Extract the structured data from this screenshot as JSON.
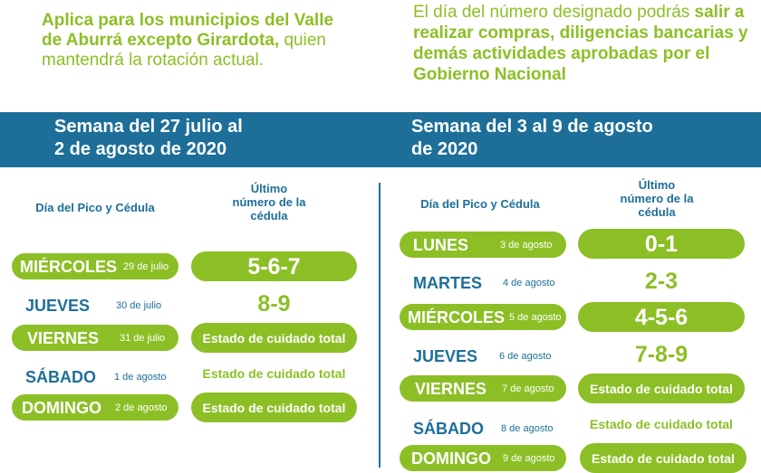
{
  "intro": {
    "left_bold": "Aplica para los municipios del Valle de Aburrá excepto Girardota,",
    "left_rest": " quien mantendrá la rotación actual.",
    "right_plain": "El día del número designado podrás ",
    "right_bold": "salir a realizar compras, diligencias bancarias y demás actividades aprobadas por el Gobierno Nacional"
  },
  "weeks": [
    {
      "title_line1": "Semana del 27 julio al",
      "title_line2": "2 de agosto de 2020",
      "day_header": "Día del Pico y Cédula",
      "number_header_line1": "Último",
      "number_header_line2": "número de la",
      "number_header_line3": "cédula",
      "rows": [
        {
          "day": "MIÉRCOLES",
          "date": "29 de julio",
          "number": "5-6-7"
        },
        {
          "day": "JUEVES",
          "date": "30 de julio",
          "number": "8-9"
        },
        {
          "day": "VIERNES",
          "date": "31 de julio",
          "number": "Estado de cuidado total"
        },
        {
          "day": "SÁBADO",
          "date": "1 de agosto",
          "number": "Estado de cuidado total"
        },
        {
          "day": "DOMINGO",
          "date": "2 de agosto",
          "number": "Estado de cuidado total"
        }
      ]
    },
    {
      "title_line1": "Semana del 3 al 9 de agosto",
      "title_line2": "de 2020",
      "day_header": "Día del Pico y Cédula",
      "number_header_line1": "Último",
      "number_header_line2": "número de la",
      "number_header_line3": "cédula",
      "rows": [
        {
          "day": "LUNES",
          "date": "3 de agosto",
          "number": "0-1"
        },
        {
          "day": "MARTES",
          "date": "4 de agosto",
          "number": "2-3"
        },
        {
          "day": "MIÉRCOLES",
          "date": "5 de agosto",
          "number": "4-5-6"
        },
        {
          "day": "JUEVES",
          "date": "6 de agosto",
          "number": "7-8-9"
        },
        {
          "day": "VIERNES",
          "date": "7 de agosto",
          "number": "Estado de cuidado total"
        },
        {
          "day": "SÁBADO",
          "date": "8 de agosto",
          "number": "Estado de cuidado total"
        },
        {
          "day": "DOMINGO",
          "date": "9 de agosto",
          "number": "Estado de cuidado total"
        }
      ]
    }
  ],
  "colors": {
    "brand_blue": "#1d6f99",
    "brand_green": "#8cbf26"
  }
}
